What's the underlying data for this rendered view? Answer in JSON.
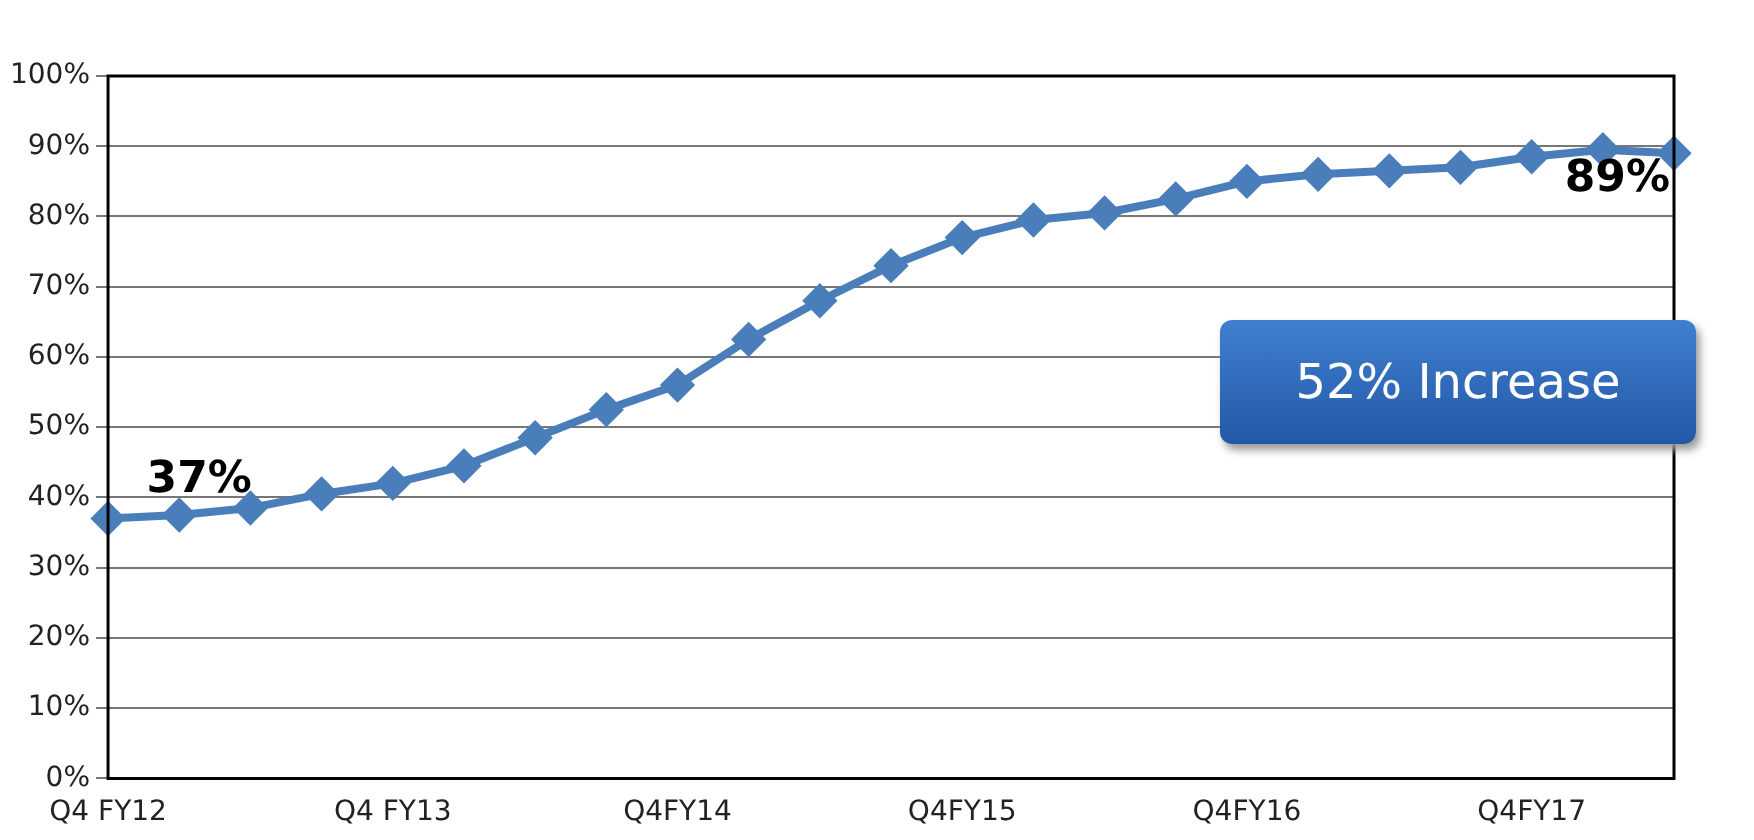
{
  "chart_data": {
    "type": "line",
    "categories": [
      "Q4 FY12",
      null,
      null,
      null,
      "Q4 FY13",
      null,
      null,
      null,
      "Q4FY14",
      null,
      null,
      null,
      "Q4FY15",
      null,
      null,
      null,
      "Q4FY16",
      null,
      null,
      null,
      "Q4FY17",
      null,
      null
    ],
    "series": [
      {
        "color": "#4a7ebb",
        "values": [
          37,
          37.5,
          38.5,
          40.5,
          42,
          44.5,
          48.5,
          52.5,
          56,
          62.5,
          68,
          73,
          77,
          79.5,
          80.5,
          82.5,
          85,
          86,
          86.5,
          87,
          88.5,
          89.5,
          89
        ],
        "value_labels": [
          null,
          "37%",
          null,
          null,
          null,
          null,
          null,
          null,
          null,
          null,
          null,
          null,
          null,
          null,
          null,
          null,
          null,
          null,
          null,
          null,
          null,
          null,
          "89%"
        ]
      }
    ],
    "ylim": [
      0,
      100
    ],
    "yticks": [
      {
        "value": 0,
        "label": "0%"
      },
      {
        "value": 10,
        "label": "10%"
      },
      {
        "value": 20,
        "label": "20%"
      },
      {
        "value": 30,
        "label": "30%"
      },
      {
        "value": 40,
        "label": "40%"
      },
      {
        "value": 50,
        "label": "50%"
      },
      {
        "value": 60,
        "label": "60%"
      },
      {
        "value": 70,
        "label": "70%"
      },
      {
        "value": 80,
        "label": "80%"
      },
      {
        "value": 90,
        "label": "90%"
      },
      {
        "value": 100,
        "label": "100%"
      }
    ],
    "grid": "y",
    "legend": false,
    "marker": "diamond",
    "line_style": "solid",
    "annotations": [
      "52% Increase"
    ]
  }
}
